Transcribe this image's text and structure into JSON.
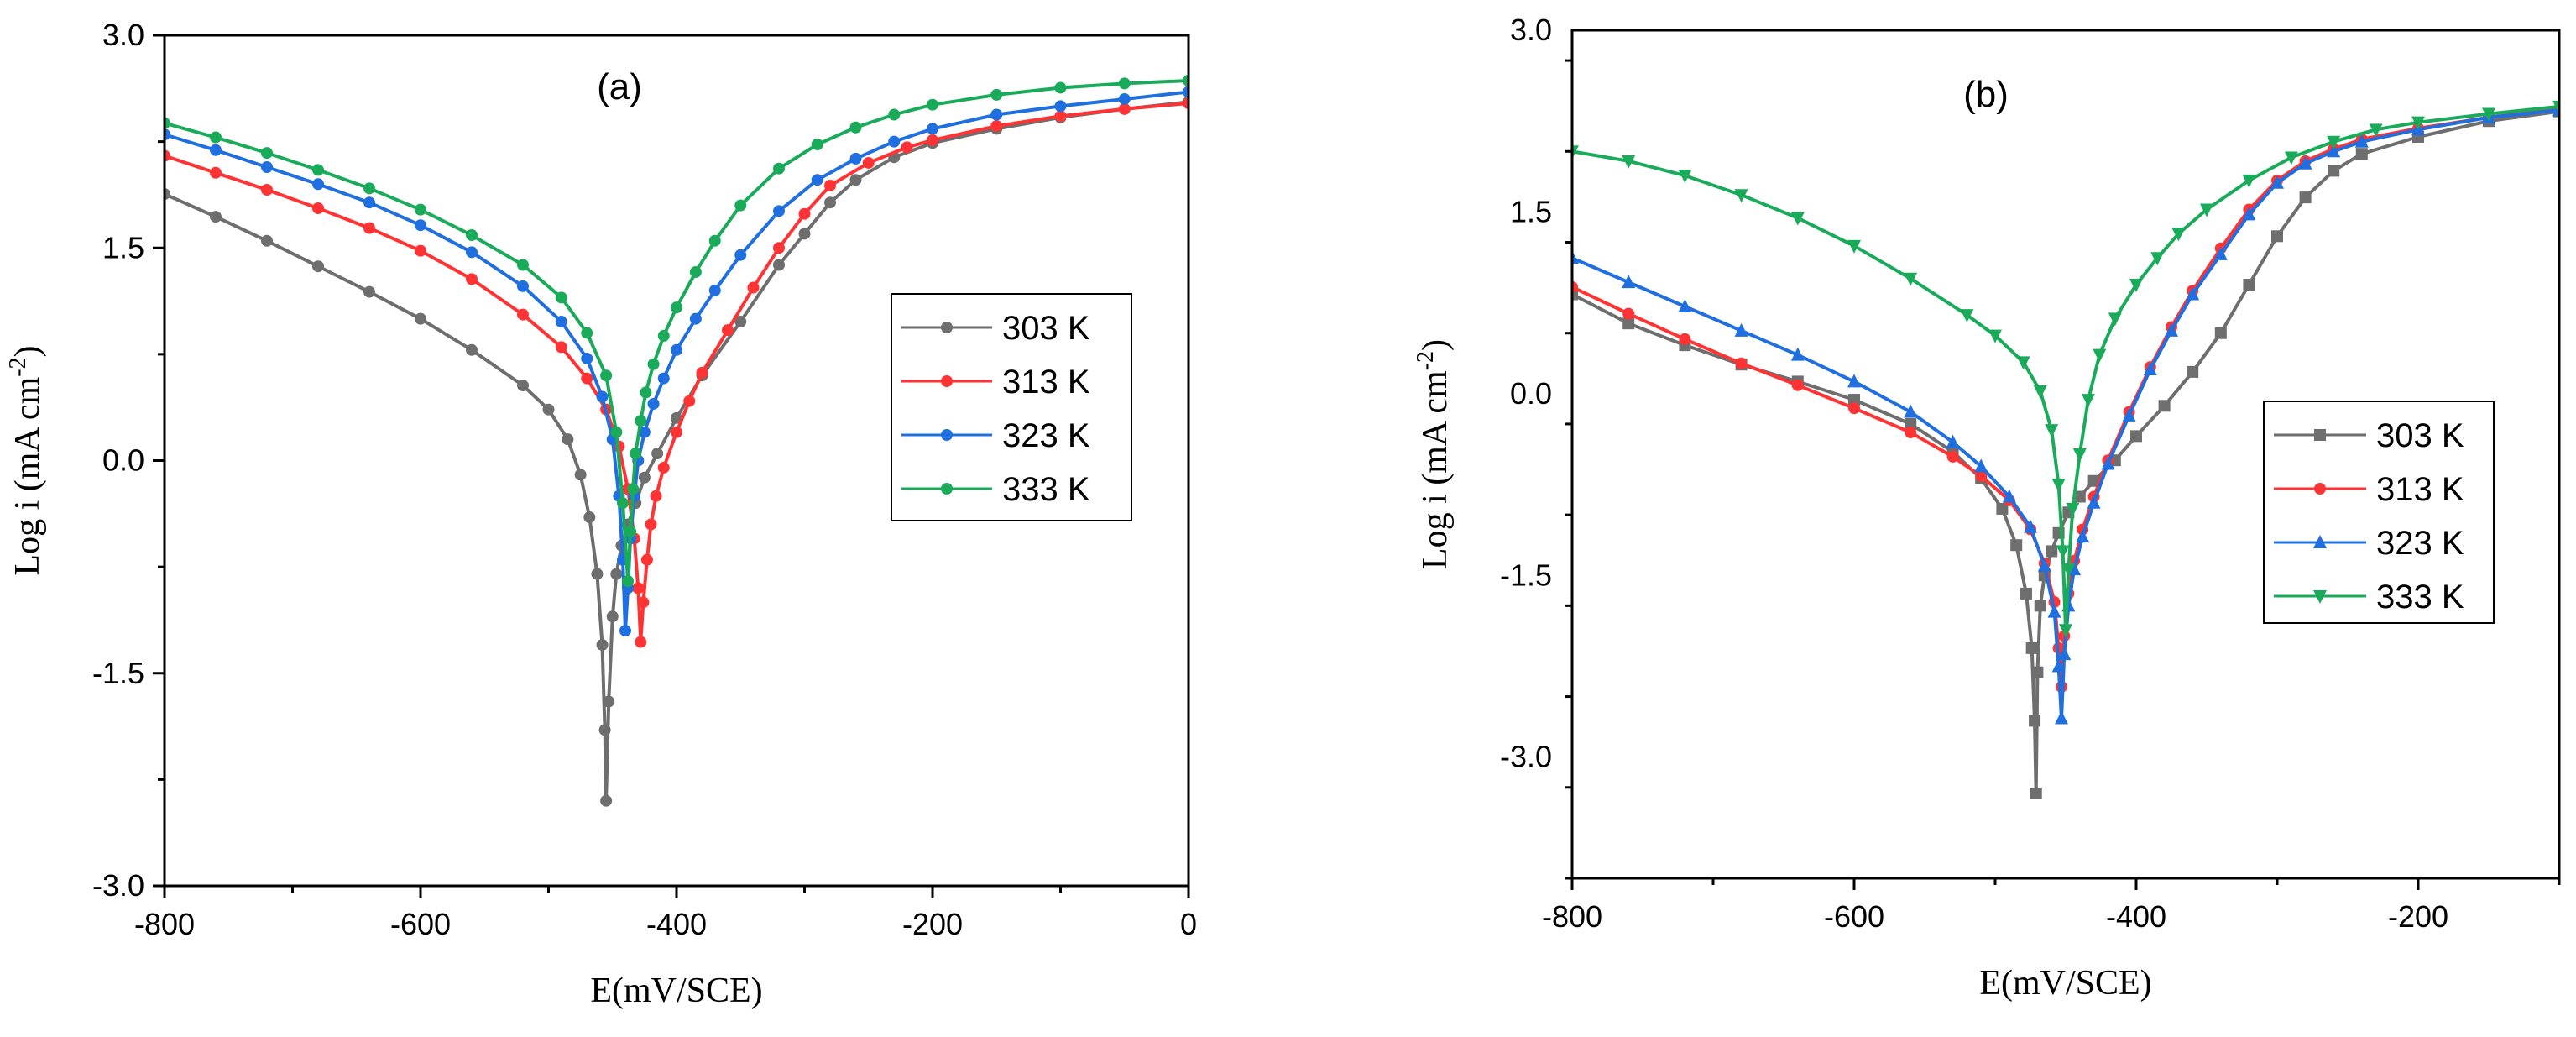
{
  "chart_data": [
    {
      "type": "line",
      "panel_label": "(a)",
      "xlabel": "E(mV/SCE)",
      "ylabel_main": "Log i (mA cm",
      "ylabel_sup": "-2",
      "ylabel_end": ")",
      "xlim": [
        -800,
        0
      ],
      "ylim": [
        -3.0,
        3.0
      ],
      "xticks": [
        -800,
        -600,
        -400,
        -200,
        0
      ],
      "xtick_labels": [
        "-800",
        "-600",
        "-400",
        "-200",
        "0"
      ],
      "yticks": [
        -3.0,
        -1.5,
        0.0,
        1.5,
        3.0
      ],
      "ytick_labels": [
        "-3.0",
        "-1.5",
        "0.0",
        "1.5",
        "3.0"
      ],
      "legend_position": "right-center",
      "series": [
        {
          "name": "303 K",
          "color": "#6e6e6e",
          "marker": "circle",
          "x": [
            -800,
            -760,
            -720,
            -680,
            -640,
            -600,
            -560,
            -520,
            -500,
            -485,
            -475,
            -468,
            -462,
            -458,
            -456,
            -455,
            -453,
            -450,
            -447,
            -443,
            -438,
            -432,
            -425,
            -415,
            -400,
            -380,
            -350,
            -320,
            -300,
            -280,
            -260,
            -230,
            -200,
            -150,
            -100,
            -50,
            0
          ],
          "y": [
            1.88,
            1.72,
            1.55,
            1.37,
            1.19,
            1.0,
            0.78,
            0.53,
            0.36,
            0.15,
            -0.1,
            -0.4,
            -0.8,
            -1.3,
            -1.9,
            -2.4,
            -1.7,
            -1.1,
            -0.8,
            -0.6,
            -0.45,
            -0.3,
            -0.12,
            0.05,
            0.3,
            0.6,
            0.98,
            1.38,
            1.6,
            1.82,
            1.98,
            2.14,
            2.24,
            2.34,
            2.42,
            2.48,
            2.53
          ]
        },
        {
          "name": "313 K",
          "color": "#ff3333",
          "marker": "circle",
          "x": [
            -800,
            -760,
            -720,
            -680,
            -640,
            -600,
            -560,
            -520,
            -490,
            -470,
            -455,
            -445,
            -438,
            -433,
            -430,
            -428,
            -426,
            -423,
            -420,
            -416,
            -410,
            -400,
            -390,
            -380,
            -360,
            -340,
            -320,
            -300,
            -280,
            -250,
            -220,
            -200,
            -150,
            -100,
            -50,
            0
          ],
          "y": [
            2.15,
            2.03,
            1.91,
            1.78,
            1.64,
            1.48,
            1.28,
            1.03,
            0.8,
            0.58,
            0.36,
            0.1,
            -0.2,
            -0.55,
            -0.9,
            -1.28,
            -1.0,
            -0.7,
            -0.45,
            -0.25,
            -0.05,
            0.2,
            0.42,
            0.62,
            0.92,
            1.22,
            1.5,
            1.74,
            1.94,
            2.1,
            2.21,
            2.26,
            2.36,
            2.43,
            2.48,
            2.52
          ]
        },
        {
          "name": "323 K",
          "color": "#1f6fe0",
          "marker": "circle",
          "x": [
            -800,
            -760,
            -720,
            -680,
            -640,
            -600,
            -560,
            -520,
            -490,
            -470,
            -458,
            -450,
            -445,
            -442,
            -440,
            -438,
            -436,
            -433,
            -430,
            -425,
            -418,
            -410,
            -400,
            -385,
            -370,
            -350,
            -320,
            -290,
            -260,
            -230,
            -200,
            -150,
            -100,
            -50,
            0
          ],
          "y": [
            2.3,
            2.19,
            2.07,
            1.95,
            1.82,
            1.66,
            1.47,
            1.23,
            0.98,
            0.72,
            0.45,
            0.15,
            -0.25,
            -0.7,
            -1.2,
            -0.9,
            -0.55,
            -0.25,
            0.0,
            0.2,
            0.4,
            0.58,
            0.78,
            1.0,
            1.2,
            1.45,
            1.76,
            1.98,
            2.13,
            2.25,
            2.34,
            2.44,
            2.5,
            2.55,
            2.6
          ]
        },
        {
          "name": "333 K",
          "color": "#1aab5a",
          "marker": "circle",
          "x": [
            -800,
            -760,
            -720,
            -680,
            -640,
            -600,
            -560,
            -520,
            -490,
            -470,
            -455,
            -447,
            -442,
            -438,
            -436,
            -434,
            -432,
            -428,
            -424,
            -418,
            -410,
            -400,
            -385,
            -370,
            -350,
            -320,
            -290,
            -260,
            -230,
            -200,
            -150,
            -100,
            -50,
            0
          ],
          "y": [
            2.38,
            2.28,
            2.17,
            2.05,
            1.92,
            1.77,
            1.59,
            1.38,
            1.15,
            0.9,
            0.6,
            0.2,
            -0.3,
            -0.85,
            -0.5,
            -0.2,
            0.05,
            0.28,
            0.48,
            0.68,
            0.88,
            1.08,
            1.33,
            1.55,
            1.8,
            2.06,
            2.23,
            2.35,
            2.44,
            2.51,
            2.58,
            2.63,
            2.66,
            2.68
          ]
        }
      ]
    },
    {
      "type": "line",
      "panel_label": "(b)",
      "xlabel": "E(mV/SCE)",
      "ylabel_main": "Log i (mA cm",
      "ylabel_sup": "-2",
      "ylabel_end": ")",
      "xlim": [
        -800,
        -100
      ],
      "ylim": [
        -4.0,
        3.0
      ],
      "xticks": [
        -800,
        -600,
        -400,
        -200
      ],
      "xtick_labels": [
        "-800",
        "-600",
        "-400",
        "-200"
      ],
      "yticks": [
        -3.0,
        -1.5,
        0.0,
        1.5,
        3.0
      ],
      "ytick_labels": [
        "-3.0",
        "-1.5",
        "0.0",
        "1.5",
        "3.0"
      ],
      "legend_position": "right-center",
      "series": [
        {
          "name": "303 K",
          "color": "#6e6e6e",
          "marker": "square",
          "x": [
            -800,
            -760,
            -720,
            -680,
            -640,
            -600,
            -560,
            -530,
            -510,
            -495,
            -485,
            -478,
            -474,
            -472,
            -471,
            -470,
            -468,
            -465,
            -460,
            -455,
            -448,
            -440,
            -430,
            -415,
            -400,
            -380,
            -360,
            -340,
            -320,
            -300,
            -280,
            -260,
            -240,
            -200,
            -150,
            -100
          ],
          "y": [
            0.82,
            0.58,
            0.4,
            0.24,
            0.1,
            -0.05,
            -0.25,
            -0.48,
            -0.7,
            -0.95,
            -1.25,
            -1.65,
            -2.1,
            -2.7,
            -3.3,
            -2.3,
            -1.75,
            -1.5,
            -1.3,
            -1.15,
            -0.98,
            -0.85,
            -0.72,
            -0.55,
            -0.35,
            -0.1,
            0.18,
            0.5,
            0.9,
            1.3,
            1.62,
            1.84,
            1.98,
            2.12,
            2.25,
            2.33
          ]
        },
        {
          "name": "313 K",
          "color": "#ff3333",
          "marker": "circle",
          "x": [
            -800,
            -760,
            -720,
            -680,
            -640,
            -600,
            -560,
            -530,
            -510,
            -490,
            -475,
            -465,
            -458,
            -455,
            -453,
            -451,
            -448,
            -444,
            -438,
            -430,
            -420,
            -405,
            -390,
            -375,
            -360,
            -340,
            -320,
            -300,
            -280,
            -260,
            -240,
            -200,
            -150,
            -100
          ],
          "y": [
            0.88,
            0.66,
            0.45,
            0.25,
            0.07,
            -0.12,
            -0.32,
            -0.52,
            -0.68,
            -0.88,
            -1.12,
            -1.4,
            -1.72,
            -2.1,
            -2.42,
            -2.0,
            -1.65,
            -1.38,
            -1.12,
            -0.85,
            -0.55,
            -0.15,
            0.22,
            0.55,
            0.85,
            1.2,
            1.52,
            1.76,
            1.92,
            2.02,
            2.1,
            2.19,
            2.28,
            2.35
          ]
        },
        {
          "name": "323 K",
          "color": "#1f6fe0",
          "marker": "triangle",
          "x": [
            -800,
            -760,
            -720,
            -680,
            -640,
            -600,
            -560,
            -530,
            -510,
            -490,
            -475,
            -465,
            -458,
            -455,
            -453,
            -451,
            -448,
            -444,
            -438,
            -430,
            -420,
            -405,
            -390,
            -375,
            -360,
            -340,
            -320,
            -300,
            -280,
            -260,
            -240,
            -200,
            -150,
            -100
          ],
          "y": [
            1.12,
            0.92,
            0.72,
            0.52,
            0.32,
            0.1,
            -0.15,
            -0.4,
            -0.6,
            -0.85,
            -1.1,
            -1.42,
            -1.8,
            -2.25,
            -2.68,
            -2.15,
            -1.75,
            -1.45,
            -1.18,
            -0.9,
            -0.58,
            -0.18,
            0.2,
            0.52,
            0.82,
            1.15,
            1.48,
            1.74,
            1.9,
            2.0,
            2.08,
            2.18,
            2.28,
            2.34
          ]
        },
        {
          "name": "333 K",
          "color": "#1aab5a",
          "marker": "triangle-down",
          "x": [
            -800,
            -760,
            -720,
            -680,
            -640,
            -600,
            -560,
            -520,
            -500,
            -480,
            -468,
            -460,
            -455,
            -452,
            -450,
            -448,
            -445,
            -440,
            -434,
            -426,
            -415,
            -400,
            -385,
            -370,
            -350,
            -320,
            -290,
            -260,
            -230,
            -200,
            -150,
            -100
          ],
          "y": [
            2.0,
            1.92,
            1.8,
            1.64,
            1.45,
            1.22,
            0.95,
            0.65,
            0.48,
            0.26,
            0.02,
            -0.3,
            -0.75,
            -1.3,
            -1.95,
            -1.45,
            -0.95,
            -0.5,
            -0.05,
            0.32,
            0.62,
            0.9,
            1.12,
            1.32,
            1.52,
            1.76,
            1.95,
            2.08,
            2.18,
            2.24,
            2.31,
            2.37
          ]
        }
      ]
    }
  ]
}
